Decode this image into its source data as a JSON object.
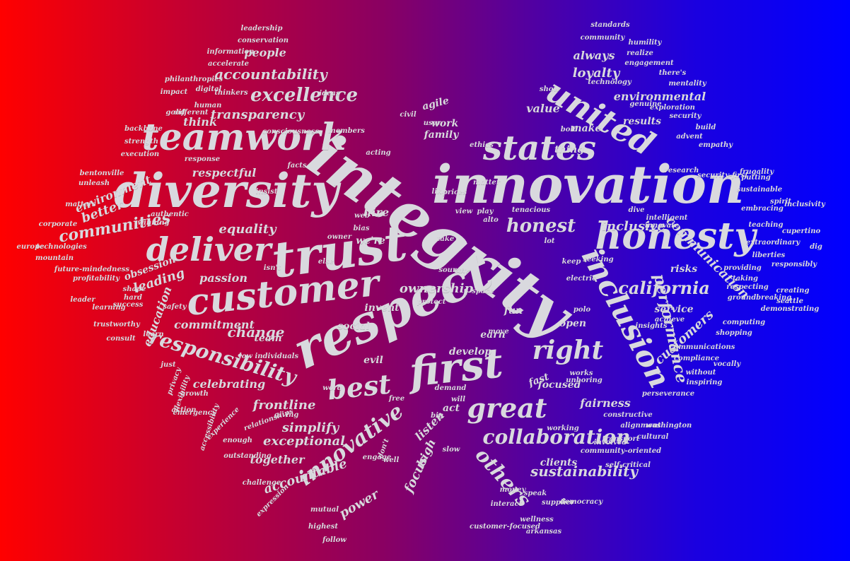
{
  "colors": {
    "gradient_left": "#ff0000",
    "gradient_mid": "#8a0062",
    "gradient_right": "#0000ff",
    "text": "#d9d9de"
  },
  "words": [
    "integrity",
    "innovation",
    "diversity",
    "respect",
    "trust",
    "customer",
    "honesty",
    "teamwork",
    "first",
    "states",
    "united",
    "deliver",
    "inclusion",
    "great",
    "right",
    "best",
    "california",
    "excellence",
    "accountability",
    "collaboration",
    "responsibility",
    "innovative",
    "others",
    "transparency",
    "honest",
    "equality",
    "respectful",
    "communities",
    "performance",
    "communication",
    "inclusive",
    "customers",
    "sustainability",
    "accountable",
    "change",
    "commitment",
    "obsession",
    "ownership",
    "passion",
    "leading",
    "people",
    "loyalty",
    "environmental",
    "always",
    "results",
    "value",
    "make",
    "thing",
    "think",
    "family",
    "work",
    "agile",
    "hire",
    "we're",
    "better",
    "environment",
    "education",
    "team",
    "celebrating",
    "frontline",
    "simplify",
    "exceptional",
    "together",
    "power",
    "focus",
    "high",
    "listen",
    "act",
    "fairness",
    "focused",
    "fast",
    "develop",
    "earn",
    "open",
    "service",
    "risks",
    "fun",
    "social",
    "invent",
    "evil",
    "clients",
    "leadership",
    "conservation",
    "information",
    "accelerate",
    "philanthropies",
    "impact",
    "digital",
    "thinkers",
    "ideas",
    "human",
    "members",
    "backbone",
    "strength",
    "execution",
    "consciousness",
    "bentonville",
    "unleash",
    "authentic",
    "response",
    "facts",
    "matters",
    "winning",
    "corporate",
    "technologies",
    "mountain",
    "future-mindedness",
    "profitability",
    "shape",
    "learning",
    "trustworthy",
    "safety",
    "learn",
    "low individuals",
    "emergency",
    "growth",
    "action",
    "flexibility",
    "privacy",
    "accessibility",
    "experience",
    "relationships",
    "giving",
    "enough",
    "outstanding",
    "challenge",
    "expression",
    "mutual",
    "highest",
    "follow",
    "engage",
    "don't",
    "slow",
    "big",
    "free",
    "word",
    "demand",
    "will",
    "well",
    "protect",
    "source",
    "space",
    "move",
    "electric",
    "polo",
    "insights",
    "achieve",
    "computing",
    "shopping",
    "communications",
    "compliance",
    "vocally",
    "without",
    "inspiring",
    "unboring",
    "works",
    "constructive",
    "alignment",
    "cultural",
    "transport",
    "washington",
    "working",
    "community-oriented",
    "involved",
    "self-critical",
    "money",
    "interact",
    "speak",
    "supplier",
    "democracy",
    "wellness",
    "customer-focused",
    "arkansas",
    "perseverance",
    "standards",
    "community",
    "humility",
    "realize",
    "engagement",
    "there's",
    "technology",
    "mentality",
    "show",
    "exploration",
    "security",
    "genuine",
    "build",
    "advent",
    "empathy",
    "bold",
    "research",
    "security-first",
    "putting",
    "sustainable",
    "frugality",
    "spirit",
    "inclusivity",
    "teaching",
    "cupertino",
    "dig",
    "extraordinary",
    "liberties",
    "providing",
    "responsibly",
    "taking",
    "respecting",
    "creating",
    "seattle",
    "groundbreaking",
    "demonstrating",
    "embracing",
    "intelligent",
    "innovate",
    "dive",
    "seeking",
    "keep",
    "lot",
    "tenacious",
    "play",
    "alto",
    "view",
    "like",
    "prices",
    "matter",
    "user",
    "ethics",
    "acting",
    "civil",
    "web",
    "bias",
    "owner",
    "take",
    "else",
    "isn't",
    "insist",
    "can",
    "different",
    "success",
    "hard",
    "europe",
    "leader",
    "consult",
    "just",
    "good"
  ]
}
